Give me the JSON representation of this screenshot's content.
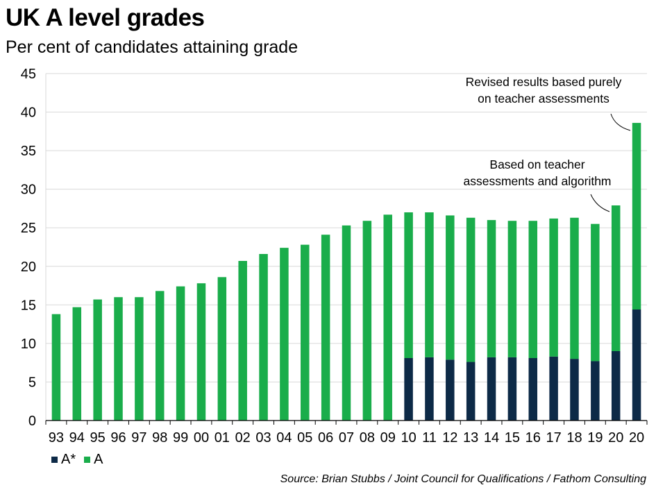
{
  "title": "UK A level grades",
  "subtitle": "Per cent of candidates attaining grade",
  "source": "Source: Brian Stubbs / Joint Council for Qualifications / Fathom Consulting",
  "colors": {
    "a_star": "#0d2a47",
    "a": "#1aad4b",
    "gridline": "#d9d9d9",
    "axis": "#000000"
  },
  "chart_data": {
    "type": "bar",
    "stacked": true,
    "categories": [
      "93",
      "94",
      "95",
      "96",
      "97",
      "98",
      "99",
      "00",
      "01",
      "02",
      "03",
      "04",
      "05",
      "06",
      "07",
      "08",
      "09",
      "10",
      "11",
      "12",
      "13",
      "14",
      "15",
      "16",
      "17",
      "18",
      "19",
      "20",
      "20"
    ],
    "series": [
      {
        "name": "A*",
        "values": [
          0,
          0,
          0,
          0,
          0,
          0,
          0,
          0,
          0,
          0,
          0,
          0,
          0,
          0,
          0,
          0,
          0,
          8.1,
          8.2,
          7.9,
          7.6,
          8.2,
          8.2,
          8.1,
          8.3,
          8.0,
          7.7,
          9.0,
          14.4
        ]
      },
      {
        "name": "A",
        "values": [
          13.8,
          14.7,
          15.7,
          16.0,
          16.0,
          16.8,
          17.4,
          17.8,
          18.6,
          20.7,
          21.6,
          22.4,
          22.8,
          24.1,
          25.3,
          25.9,
          26.7,
          18.9,
          18.8,
          18.7,
          18.7,
          17.8,
          17.7,
          17.8,
          17.9,
          18.3,
          17.8,
          18.9,
          24.2
        ]
      }
    ],
    "ylim": [
      0,
      45
    ],
    "yticks": [
      "0",
      "5",
      "10",
      "15",
      "20",
      "25",
      "30",
      "35",
      "40",
      "45"
    ],
    "grid": true,
    "legend_position": "bottom-left",
    "annotations": [
      {
        "lines": [
          "Revised results based purely",
          "on teacher assessments"
        ],
        "target_index": 28
      },
      {
        "lines": [
          "Based on teacher",
          "assessments and algorithm"
        ],
        "target_index": 27
      }
    ]
  }
}
